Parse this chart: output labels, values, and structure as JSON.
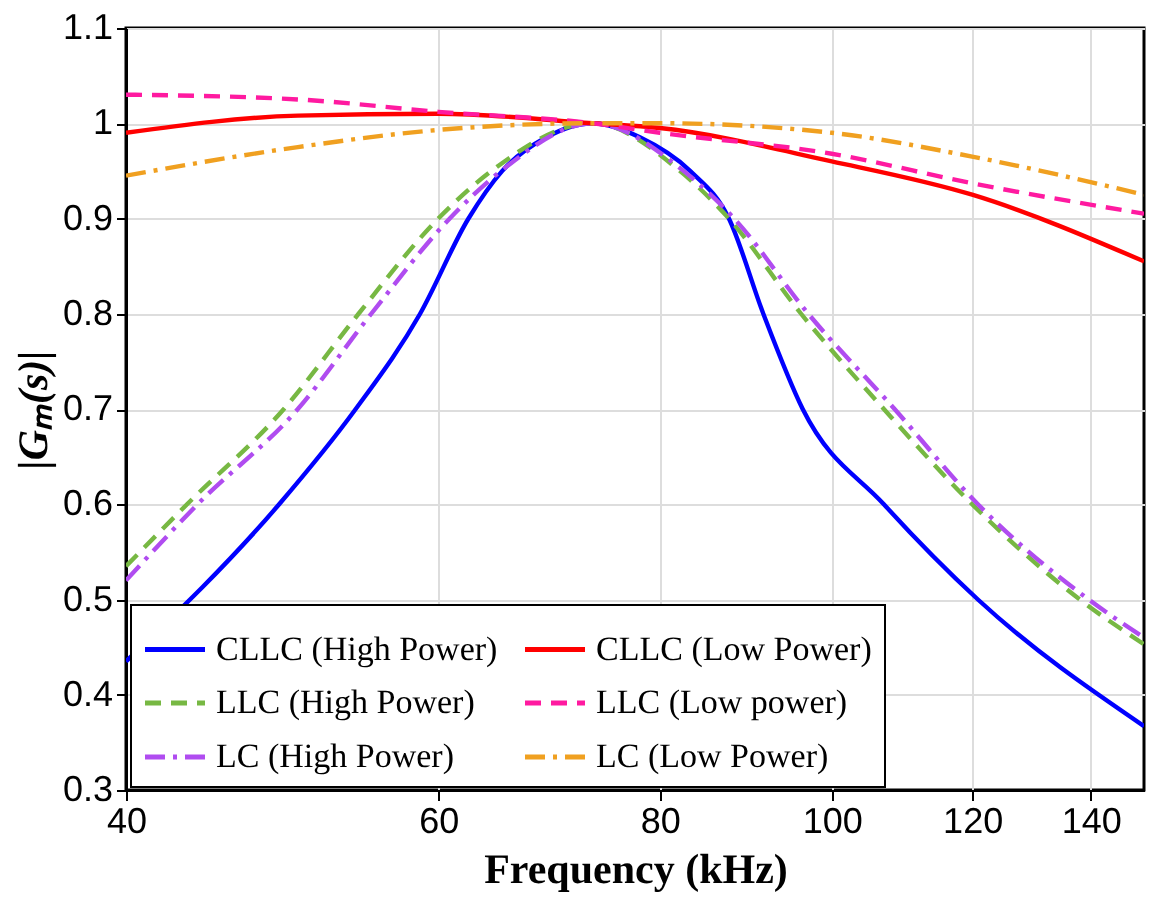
{
  "chart_data": {
    "type": "line",
    "xlabel": "Frequency (kHz)",
    "ylabel": "|Gₘ(s)|",
    "log": "x",
    "grid": true,
    "legend": "bottom left",
    "xlim": [
      40,
      150
    ],
    "xticks": [
      40,
      60,
      80,
      100,
      120,
      140
    ],
    "ylim": [
      0.3,
      1.1
    ],
    "yticks": [
      0.3,
      0.4,
      0.5,
      0.6,
      0.7,
      0.8,
      0.9,
      1,
      1.1
    ],
    "series": [
      {
        "name": "CLLC (High Power)",
        "color": "#0000ff",
        "line_style": "solid",
        "x": [
          40,
          48.8,
          53.9,
          58.6,
          62.4,
          65.2,
          69,
          73.3,
          78,
          83.2,
          87.5,
          91.5,
          96.3,
          107,
          120.9,
          150
        ],
        "values": [
          0.435,
          0.6,
          0.7,
          0.8,
          0.9,
          0.95,
          0.985,
          1,
          0.985,
          0.95,
          0.9,
          0.8,
          0.7,
          0.6,
          0.5,
          0.367
        ]
      },
      {
        "name": "LLC (High Power)",
        "color": "#77b843",
        "line_style": "dashed",
        "x": [
          40,
          43.3,
          49.1,
          54.1,
          60,
          64.3,
          73.3,
          82.1,
          87.5,
          96.1,
          107,
          120,
          138,
          150
        ],
        "values": [
          0.535,
          0.6,
          0.7,
          0.8,
          0.9,
          0.95,
          1,
          0.95,
          0.9,
          0.8,
          0.7,
          0.6,
          0.5,
          0.453
        ]
      },
      {
        "name": "LC (High Power)",
        "color": "#b04cf0",
        "line_style": "dashdot",
        "x": [
          40,
          43.9,
          50,
          55,
          60.9,
          65.1,
          73.3,
          82.5,
          88.1,
          97,
          108.5,
          120.9,
          139.6,
          150
        ],
        "values": [
          0.52,
          0.6,
          0.7,
          0.8,
          0.9,
          0.95,
          1,
          0.95,
          0.9,
          0.8,
          0.7,
          0.6,
          0.5,
          0.46
        ]
      },
      {
        "name": "CLLC (Low Power)",
        "color": "#ff0000",
        "line_style": "solid",
        "x": [
          40,
          50,
          60,
          73.3,
          80,
          100,
          120,
          150
        ],
        "values": [
          0.99,
          1.008,
          1.01,
          1,
          0.995,
          0.96,
          0.925,
          0.855
        ]
      },
      {
        "name": "LLC (Low power)",
        "color": "#ff1aa0",
        "line_style": "dashed",
        "x": [
          40,
          50,
          60,
          73.3,
          80,
          100,
          120,
          150
        ],
        "values": [
          1.03,
          1.025,
          1.012,
          1,
          0.99,
          0.968,
          0.937,
          0.905
        ]
      },
      {
        "name": "LC (Low Power)",
        "color": "#f0a020",
        "line_style": "dashdot",
        "x": [
          40,
          50,
          60,
          73.3,
          80,
          100,
          120,
          150
        ],
        "values": [
          0.945,
          0.975,
          0.993,
          1,
          1,
          0.99,
          0.965,
          0.925
        ]
      }
    ]
  }
}
